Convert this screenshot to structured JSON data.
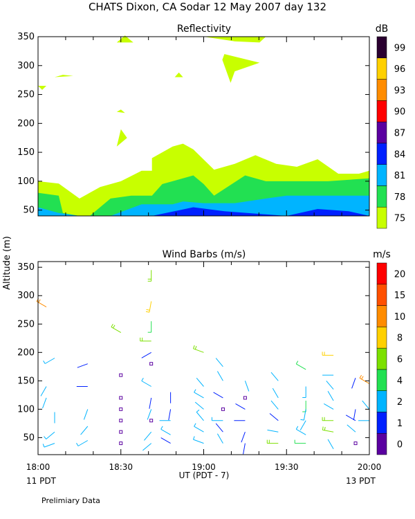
{
  "figure": {
    "title": "CHATS Dixon, CA   Sodar   12 May 2007   day 132",
    "ylabel": "Altitude  (m)",
    "xlabel": "UT  (PDT - 7)",
    "left_date": "11 PDT",
    "right_date": "13 PDT",
    "footer": "Prelimiary Data"
  },
  "chart_data": [
    {
      "type": "heatmap",
      "title": "Reflectivity",
      "x_ticks": [
        "18:00",
        "18:30",
        "19:00",
        "19:30",
        "20:00"
      ],
      "x_range": [
        "18:00",
        "20:00"
      ],
      "y_ticks": [
        50,
        100,
        150,
        200,
        250,
        300,
        350
      ],
      "ylim": [
        40,
        350
      ],
      "colorbar": {
        "unit": "dB",
        "ticks": [
          75,
          78,
          81,
          84,
          87,
          90,
          93,
          96,
          99
        ],
        "colors": [
          "#c8ff00",
          "#22e052",
          "#00b4ff",
          "#0020ff",
          "#5a00a0",
          "#ff0000",
          "#ff8c00",
          "#ffd000",
          "#2a0030"
        ]
      },
      "contours": [
        {
          "level": 75,
          "color": "#c8ff00",
          "points": [
            [
              0,
              40
            ],
            [
              0,
              100
            ],
            [
              10,
              96
            ],
            [
              20,
              70
            ],
            [
              30,
              90
            ],
            [
              40,
              100
            ],
            [
              50,
              118
            ],
            [
              55,
              118
            ],
            [
              55,
              140
            ],
            [
              65,
              160
            ],
            [
              70,
              165
            ],
            [
              75,
              155
            ],
            [
              85,
              120
            ],
            [
              95,
              130
            ],
            [
              105,
              145
            ],
            [
              115,
              130
            ],
            [
              125,
              125
            ],
            [
              135,
              138
            ],
            [
              145,
              113
            ],
            [
              155,
              113
            ],
            [
              160,
              118
            ],
            [
              160,
              40
            ]
          ]
        },
        {
          "level": 78,
          "color": "#22e052",
          "points": [
            [
              0,
              40
            ],
            [
              0,
              80
            ],
            [
              10,
              75
            ],
            [
              12,
              45
            ],
            [
              20,
              40
            ],
            [
              25,
              40
            ],
            [
              35,
              70
            ],
            [
              45,
              75
            ],
            [
              55,
              75
            ],
            [
              60,
              95
            ],
            [
              75,
              110
            ],
            [
              80,
              95
            ],
            [
              85,
              75
            ],
            [
              100,
              110
            ],
            [
              110,
              100
            ],
            [
              130,
              100
            ],
            [
              140,
              100
            ],
            [
              160,
              105
            ],
            [
              160,
              40
            ]
          ]
        },
        {
          "level": 81,
          "color": "#00b4ff",
          "points": [
            [
              0,
              40
            ],
            [
              0,
              55
            ],
            [
              10,
              45
            ],
            [
              20,
              40
            ],
            [
              35,
              40
            ],
            [
              50,
              60
            ],
            [
              65,
              60
            ],
            [
              70,
              65
            ],
            [
              80,
              62
            ],
            [
              95,
              62
            ],
            [
              110,
              70
            ],
            [
              120,
              75
            ],
            [
              140,
              75
            ],
            [
              160,
              75
            ],
            [
              160,
              40
            ]
          ]
        },
        {
          "level": 84,
          "color": "#0020ff",
          "points": [
            [
              55,
              40
            ],
            [
              75,
              55
            ],
            [
              90,
              48
            ],
            [
              120,
              40
            ],
            [
              135,
              52
            ],
            [
              150,
              48
            ],
            [
              160,
              40
            ]
          ]
        }
      ],
      "patches": [
        {
          "level": 75,
          "points": [
            [
              8,
              280
            ],
            [
              12,
              284
            ],
            [
              17,
              282
            ]
          ]
        },
        {
          "level": 75,
          "points": [
            [
              0,
              265
            ],
            [
              2,
              258
            ],
            [
              4,
              265
            ]
          ]
        },
        {
          "level": 75,
          "points": [
            [
              38,
              340
            ],
            [
              42,
              352
            ],
            [
              46,
              340
            ]
          ]
        },
        {
          "level": 75,
          "points": [
            [
              66,
              280
            ],
            [
              68,
              288
            ],
            [
              70,
              280
            ]
          ]
        },
        {
          "level": 75,
          "points": [
            [
              38,
              220
            ],
            [
              40,
              224
            ],
            [
              42,
              218
            ]
          ]
        },
        {
          "level": 75,
          "points": [
            [
              38,
              160
            ],
            [
              40,
              190
            ],
            [
              43,
              175
            ]
          ]
        },
        {
          "level": 75,
          "points": [
            [
              80,
              350
            ],
            [
              110,
              350
            ],
            [
              107,
              340
            ],
            [
              95,
              342
            ]
          ]
        },
        {
          "level": 75,
          "points": [
            [
              89,
              310
            ],
            [
              90,
              320
            ],
            [
              107,
              305
            ],
            [
              95,
              290
            ],
            [
              93,
              270
            ]
          ]
        }
      ]
    },
    {
      "type": "scatter",
      "title": "Wind Barbs (m/s)",
      "x_ticks": [
        "18:00",
        "18:30",
        "19:00",
        "19:30",
        "20:00"
      ],
      "x_range": [
        "18:00",
        "20:00"
      ],
      "y_ticks": [
        50,
        100,
        150,
        200,
        250,
        300,
        350
      ],
      "ylim": [
        20,
        360
      ],
      "colorbar": {
        "unit": "m/s",
        "ticks": [
          "0",
          "1",
          "2",
          "4",
          "6",
          "8",
          "10",
          "15",
          "20"
        ],
        "colors": [
          "#5a00a0",
          "#0020ff",
          "#00b4ff",
          "#22e052",
          "#7ce000",
          "#ffd000",
          "#ff8c00",
          "#ff5000",
          "#ff0000"
        ]
      },
      "barbs": [
        {
          "t": "18:03",
          "z": 140,
          "speed": 2,
          "dir": 210
        },
        {
          "t": "18:03",
          "z": 120,
          "speed": 2,
          "dir": 200
        },
        {
          "t": "18:06",
          "z": 190,
          "speed": 3,
          "dir": 240
        },
        {
          "t": "18:06",
          "z": 95,
          "speed": 2,
          "dir": 180
        },
        {
          "t": "18:06",
          "z": 60,
          "speed": 3,
          "dir": 230
        },
        {
          "t": "18:06",
          "z": 40,
          "speed": 3,
          "dir": 250
        },
        {
          "t": "18:03",
          "z": 280,
          "speed": 10,
          "dir": 300
        },
        {
          "t": "18:18",
          "z": 180,
          "speed": 1,
          "dir": 250
        },
        {
          "t": "18:18",
          "z": 140,
          "speed": 1,
          "dir": 270
        },
        {
          "t": "18:18",
          "z": 100,
          "speed": 2,
          "dir": 200
        },
        {
          "t": "18:18",
          "z": 70,
          "speed": 2,
          "dir": 220
        },
        {
          "t": "18:18",
          "z": 45,
          "speed": 3,
          "dir": 240
        },
        {
          "t": "18:30",
          "z": 235,
          "speed": 6,
          "dir": 300
        },
        {
          "t": "18:30",
          "z": 160,
          "speed": 0,
          "dir": 0
        },
        {
          "t": "18:30",
          "z": 120,
          "speed": 0,
          "dir": 0
        },
        {
          "t": "18:30",
          "z": 100,
          "speed": 0,
          "dir": 0
        },
        {
          "t": "18:30",
          "z": 80,
          "speed": 0,
          "dir": 0
        },
        {
          "t": "18:30",
          "z": 60,
          "speed": 0,
          "dir": 0
        },
        {
          "t": "18:30",
          "z": 40,
          "speed": 0,
          "dir": 0
        },
        {
          "t": "18:41",
          "z": 345,
          "speed": 6,
          "dir": 180
        },
        {
          "t": "18:41",
          "z": 290,
          "speed": 8,
          "dir": 190
        },
        {
          "t": "18:41",
          "z": 255,
          "speed": 4,
          "dir": 180
        },
        {
          "t": "18:41",
          "z": 220,
          "speed": 6,
          "dir": 270
        },
        {
          "t": "18:41",
          "z": 200,
          "speed": 1,
          "dir": 240
        },
        {
          "t": "18:41",
          "z": 180,
          "speed": 0,
          "dir": 0
        },
        {
          "t": "18:41",
          "z": 140,
          "speed": 3,
          "dir": 300
        },
        {
          "t": "18:41",
          "z": 120,
          "speed": 1,
          "dir": 190
        },
        {
          "t": "18:41",
          "z": 100,
          "speed": 2,
          "dir": 200
        },
        {
          "t": "18:41",
          "z": 80,
          "speed": 0,
          "dir": 0
        },
        {
          "t": "18:41",
          "z": 60,
          "speed": 2,
          "dir": 220
        },
        {
          "t": "18:41",
          "z": 40,
          "speed": 2,
          "dir": 230
        },
        {
          "t": "18:48",
          "z": 130,
          "speed": 1,
          "dir": 180
        },
        {
          "t": "18:48",
          "z": 100,
          "speed": 1,
          "dir": 190
        },
        {
          "t": "18:48",
          "z": 80,
          "speed": 2,
          "dir": 270
        },
        {
          "t": "18:48",
          "z": 55,
          "speed": 3,
          "dir": 300
        },
        {
          "t": "18:48",
          "z": 40,
          "speed": 1,
          "dir": 300
        },
        {
          "t": "19:00",
          "z": 200,
          "speed": 6,
          "dir": 290
        },
        {
          "t": "19:00",
          "z": 140,
          "speed": 2,
          "dir": 320
        },
        {
          "t": "19:00",
          "z": 120,
          "speed": 3,
          "dir": 300
        },
        {
          "t": "19:00",
          "z": 100,
          "speed": 2,
          "dir": 310
        },
        {
          "t": "19:00",
          "z": 80,
          "speed": 3,
          "dir": 320
        },
        {
          "t": "19:00",
          "z": 60,
          "speed": 3,
          "dir": 300
        },
        {
          "t": "19:00",
          "z": 40,
          "speed": 3,
          "dir": 290
        },
        {
          "t": "19:07",
          "z": 175,
          "speed": 2,
          "dir": 320
        },
        {
          "t": "19:07",
          "z": 150,
          "speed": 2,
          "dir": 330
        },
        {
          "t": "19:07",
          "z": 120,
          "speed": 1,
          "dir": 300
        },
        {
          "t": "19:07",
          "z": 100,
          "speed": 0,
          "dir": 0
        },
        {
          "t": "19:07",
          "z": 80,
          "speed": 3,
          "dir": 270
        },
        {
          "t": "19:07",
          "z": 60,
          "speed": 1,
          "dir": 320
        },
        {
          "t": "19:07",
          "z": 40,
          "speed": 2,
          "dir": 330
        },
        {
          "t": "19:15",
          "z": 150,
          "speed": 2,
          "dir": 160
        },
        {
          "t": "19:15",
          "z": 120,
          "speed": 0,
          "dir": 0
        },
        {
          "t": "19:15",
          "z": 100,
          "speed": 1,
          "dir": 300
        },
        {
          "t": "19:15",
          "z": 80,
          "speed": 1,
          "dir": 270
        },
        {
          "t": "19:15",
          "z": 60,
          "speed": 1,
          "dir": 200
        },
        {
          "t": "19:15",
          "z": 40,
          "speed": 1,
          "dir": 190
        },
        {
          "t": "19:27",
          "z": 150,
          "speed": 2,
          "dir": 320
        },
        {
          "t": "19:27",
          "z": 120,
          "speed": 2,
          "dir": 330
        },
        {
          "t": "19:27",
          "z": 100,
          "speed": 2,
          "dir": 320
        },
        {
          "t": "19:27",
          "z": 80,
          "speed": 1,
          "dir": 310
        },
        {
          "t": "19:27",
          "z": 60,
          "speed": 2,
          "dir": 280
        },
        {
          "t": "19:27",
          "z": 40,
          "speed": 6,
          "dir": 270
        },
        {
          "t": "19:37",
          "z": 170,
          "speed": 4,
          "dir": 300
        },
        {
          "t": "19:37",
          "z": 140,
          "speed": 3,
          "dir": 180
        },
        {
          "t": "19:37",
          "z": 115,
          "speed": 4,
          "dir": 180
        },
        {
          "t": "19:37",
          "z": 100,
          "speed": 3,
          "dir": 190
        },
        {
          "t": "19:37",
          "z": 80,
          "speed": 2,
          "dir": 210
        },
        {
          "t": "19:37",
          "z": 55,
          "speed": 3,
          "dir": 300
        },
        {
          "t": "19:37",
          "z": 40,
          "speed": 4,
          "dir": 270
        },
        {
          "t": "19:47",
          "z": 195,
          "speed": 8,
          "dir": 270
        },
        {
          "t": "19:47",
          "z": 160,
          "speed": 2,
          "dir": 270
        },
        {
          "t": "19:47",
          "z": 135,
          "speed": 2,
          "dir": 320
        },
        {
          "t": "19:47",
          "z": 115,
          "speed": 2,
          "dir": 330
        },
        {
          "t": "19:47",
          "z": 100,
          "speed": 2,
          "dir": 300
        },
        {
          "t": "19:47",
          "z": 80,
          "speed": 6,
          "dir": 270
        },
        {
          "t": "19:47",
          "z": 60,
          "speed": 6,
          "dir": 280
        },
        {
          "t": "19:47",
          "z": 30,
          "speed": 2,
          "dir": 330
        },
        {
          "t": "19:55",
          "z": 155,
          "speed": 1,
          "dir": 200
        },
        {
          "t": "19:55",
          "z": 100,
          "speed": 1,
          "dir": 190
        },
        {
          "t": "19:55",
          "z": 80,
          "speed": 1,
          "dir": 300
        },
        {
          "t": "19:55",
          "z": 60,
          "speed": 2,
          "dir": 310
        },
        {
          "t": "19:55",
          "z": 40,
          "speed": 0,
          "dir": 0
        },
        {
          "t": "20:00",
          "z": 145,
          "speed": 10,
          "dir": 300
        },
        {
          "t": "20:00",
          "z": 100,
          "speed": 2,
          "dir": 320
        },
        {
          "t": "20:00",
          "z": 80,
          "speed": 2,
          "dir": 270
        }
      ]
    }
  ]
}
